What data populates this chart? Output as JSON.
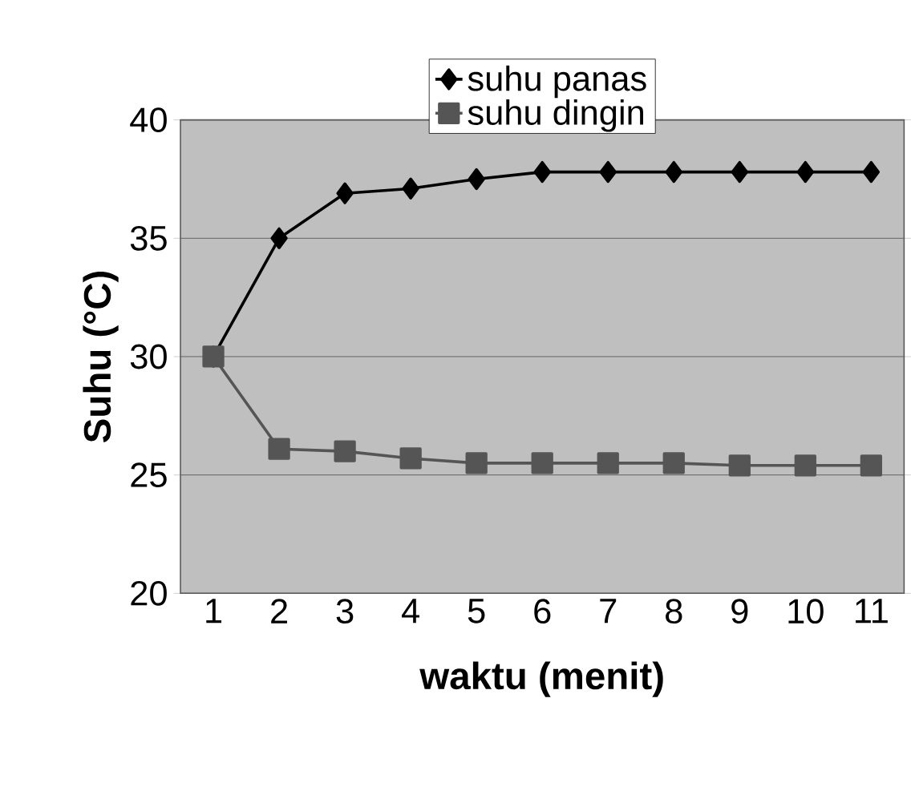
{
  "chart_data": {
    "type": "line",
    "xlabel": "waktu (menit)",
    "ylabel": "Suhu (°C)",
    "categories": [
      "1",
      "2",
      "3",
      "4",
      "5",
      "6",
      "7",
      "8",
      "9",
      "10",
      "11"
    ],
    "series": [
      {
        "name": "suhu panas",
        "color": "#000000",
        "marker": "diamond",
        "values": [
          30,
          35,
          36.9,
          37.1,
          37.5,
          37.8,
          37.8,
          37.8,
          37.8,
          37.8,
          37.8
        ]
      },
      {
        "name": "suhu dingin",
        "color": "#555555",
        "marker": "square",
        "values": [
          30,
          26.1,
          26.0,
          25.7,
          25.5,
          25.5,
          25.5,
          25.5,
          25.4,
          25.4,
          25.4
        ]
      }
    ],
    "ylim": [
      20,
      40
    ],
    "yticks": [
      20,
      25,
      30,
      35,
      40
    ],
    "grid": "y",
    "legend": "top"
  }
}
